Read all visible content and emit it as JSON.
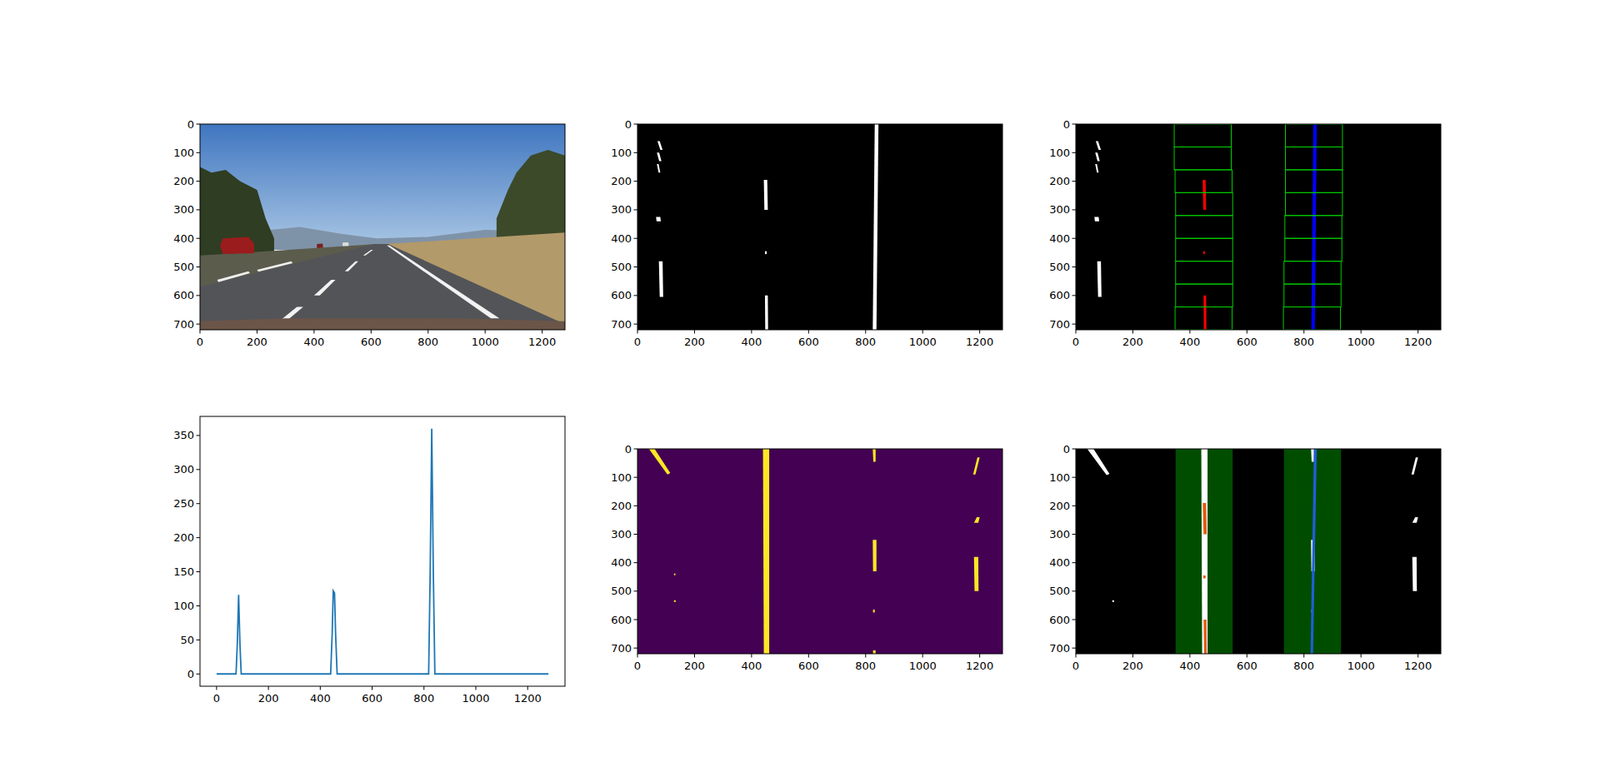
{
  "chart_data": [
    {
      "type": "photo",
      "xlim": [
        0,
        1280
      ],
      "ylim": [
        720,
        0
      ],
      "xticks": [
        0,
        200,
        400,
        600,
        800,
        1000,
        1200
      ],
      "yticks": [
        0,
        100,
        200,
        300,
        400,
        500,
        600,
        700
      ]
    },
    {
      "type": "image",
      "background": "#000000",
      "xlim": [
        0,
        1280
      ],
      "ylim": [
        720,
        0
      ],
      "xticks": [
        0,
        200,
        400,
        600,
        800,
        1000,
        1200
      ],
      "yticks": [
        0,
        100,
        200,
        300,
        400,
        500,
        600,
        700
      ],
      "layers": [
        {
          "type": "polygon",
          "color": "#ffffff",
          "polygons": [
            [
              [
                70,
                60
              ],
              [
                78,
                60
              ],
              [
                88,
                90
              ],
              [
                80,
                90
              ]
            ],
            [
              [
                68,
                100
              ],
              [
                76,
                100
              ],
              [
                84,
                130
              ],
              [
                76,
                130
              ]
            ],
            [
              [
                68,
                140
              ],
              [
                74,
                140
              ],
              [
                80,
                170
              ],
              [
                74,
                170
              ]
            ],
            [
              [
                65,
                325
              ],
              [
                80,
                325
              ],
              [
                82,
                340
              ],
              [
                67,
                340
              ]
            ],
            [
              [
                75,
                480
              ],
              [
                88,
                480
              ],
              [
                90,
                605
              ],
              [
                78,
                605
              ]
            ],
            [
              [
                443,
                195
              ],
              [
                455,
                195
              ],
              [
                457,
                300
              ],
              [
                445,
                300
              ]
            ],
            [
              [
                447,
                445
              ],
              [
                453,
                445
              ],
              [
                453,
                455
              ],
              [
                447,
                455
              ]
            ],
            [
              [
                447,
                600
              ],
              [
                457,
                600
              ],
              [
                458,
                720
              ],
              [
                448,
                720
              ]
            ],
            [
              [
                832,
                0
              ],
              [
                845,
                0
              ],
              [
                838,
                720
              ],
              [
                825,
                720
              ]
            ]
          ]
        }
      ]
    },
    {
      "type": "image",
      "background": "#000000",
      "xlim": [
        0,
        1280
      ],
      "ylim": [
        720,
        0
      ],
      "xticks": [
        0,
        200,
        400,
        600,
        800,
        1000,
        1200
      ],
      "yticks": [
        0,
        100,
        200,
        300,
        400,
        500,
        600,
        700
      ],
      "layers": [
        {
          "type": "polygon",
          "color": "#ffffff",
          "polygons": [
            [
              [
                70,
                60
              ],
              [
                78,
                60
              ],
              [
                88,
                90
              ],
              [
                80,
                90
              ]
            ],
            [
              [
                68,
                100
              ],
              [
                76,
                100
              ],
              [
                84,
                130
              ],
              [
                76,
                130
              ]
            ],
            [
              [
                68,
                140
              ],
              [
                74,
                140
              ],
              [
                80,
                170
              ],
              [
                74,
                170
              ]
            ],
            [
              [
                65,
                325
              ],
              [
                80,
                325
              ],
              [
                82,
                340
              ],
              [
                67,
                340
              ]
            ],
            [
              [
                75,
                480
              ],
              [
                88,
                480
              ],
              [
                90,
                605
              ],
              [
                78,
                605
              ]
            ]
          ]
        },
        {
          "type": "polygon",
          "color": "#ff0000",
          "polygons": [
            [
              [
                445,
                195
              ],
              [
                455,
                195
              ],
              [
                457,
                300
              ],
              [
                447,
                300
              ]
            ],
            [
              [
                447,
                445
              ],
              [
                453,
                445
              ],
              [
                453,
                455
              ],
              [
                447,
                455
              ]
            ],
            [
              [
                448,
                600
              ],
              [
                457,
                600
              ],
              [
                458,
                720
              ],
              [
                449,
                720
              ]
            ]
          ]
        },
        {
          "type": "polygon",
          "color": "#0000ff",
          "polygons": [
            [
              [
                833,
                0
              ],
              [
                845,
                0
              ],
              [
                838,
                720
              ],
              [
                826,
                720
              ]
            ]
          ]
        },
        {
          "type": "outline",
          "color": "#00cc00",
          "boxes": [
            [
              345,
              0,
              545,
              80
            ],
            [
              345,
              80,
              545,
              160
            ],
            [
              348,
              160,
              548,
              240
            ],
            [
              350,
              240,
              550,
              320
            ],
            [
              350,
              320,
              550,
              400
            ],
            [
              350,
              400,
              550,
              480
            ],
            [
              350,
              480,
              550,
              560
            ],
            [
              350,
              560,
              550,
              640
            ],
            [
              348,
              640,
              548,
              720
            ],
            [
              735,
              0,
              935,
              80
            ],
            [
              735,
              80,
              935,
              160
            ],
            [
              735,
              160,
              935,
              240
            ],
            [
              735,
              240,
              935,
              320
            ],
            [
              733,
              320,
              933,
              400
            ],
            [
              733,
              400,
              933,
              480
            ],
            [
              730,
              480,
              930,
              560
            ],
            [
              730,
              560,
              930,
              640
            ],
            [
              728,
              640,
              928,
              720
            ]
          ]
        }
      ]
    },
    {
      "type": "line",
      "color": "#1f77b4",
      "xlim": [
        -64,
        1344
      ],
      "ylim": [
        -18,
        378
      ],
      "xticks": [
        0,
        200,
        400,
        600,
        800,
        1000,
        1200
      ],
      "yticks": [
        0,
        50,
        100,
        150,
        200,
        250,
        300,
        350
      ],
      "x": [
        0,
        75,
        80,
        85,
        90,
        95,
        440,
        446,
        450,
        455,
        459,
        465,
        818,
        824,
        830,
        836,
        842,
        1280
      ],
      "values": [
        0,
        0,
        45,
        116,
        45,
        0,
        0,
        60,
        122,
        119,
        60,
        0,
        0,
        150,
        360,
        150,
        0,
        0
      ]
    },
    {
      "type": "image",
      "background": "#440154",
      "xlim": [
        0,
        1280
      ],
      "ylim": [
        720,
        0
      ],
      "xticks": [
        0,
        200,
        400,
        600,
        800,
        1000,
        1200
      ],
      "yticks": [
        0,
        100,
        200,
        300,
        400,
        500,
        600,
        700
      ],
      "layers": [
        {
          "type": "polygon",
          "color": "#fde725",
          "polygons": [
            [
              [
                40,
                0
              ],
              [
                60,
                0
              ],
              [
                115,
                85
              ],
              [
                105,
                90
              ]
            ],
            [
              [
                440,
                0
              ],
              [
                462,
                0
              ],
              [
                462,
                720
              ],
              [
                443,
                720
              ]
            ],
            [
              [
                825,
                0
              ],
              [
                835,
                0
              ],
              [
                835,
                45
              ],
              [
                827,
                45
              ]
            ],
            [
              [
                825,
                320
              ],
              [
                838,
                320
              ],
              [
                838,
                430
              ],
              [
                826,
                430
              ]
            ],
            [
              [
                826,
                565
              ],
              [
                832,
                565
              ],
              [
                832,
                575
              ],
              [
                826,
                575
              ]
            ],
            [
              [
                826,
                708
              ],
              [
                835,
                708
              ],
              [
                835,
                720
              ],
              [
                826,
                720
              ]
            ],
            [
              [
                1192,
                30
              ],
              [
                1200,
                30
              ],
              [
                1185,
                90
              ],
              [
                1177,
                90
              ]
            ],
            [
              [
                1190,
                240
              ],
              [
                1200,
                240
              ],
              [
                1195,
                260
              ],
              [
                1180,
                260
              ]
            ],
            [
              [
                1180,
                380
              ],
              [
                1195,
                380
              ],
              [
                1196,
                500
              ],
              [
                1182,
                500
              ]
            ],
            [
              [
                128,
                438
              ],
              [
                133,
                438
              ],
              [
                133,
                444
              ],
              [
                128,
                444
              ]
            ],
            [
              [
                128,
                532
              ],
              [
                134,
                532
              ],
              [
                134,
                538
              ],
              [
                128,
                538
              ]
            ]
          ]
        }
      ]
    },
    {
      "type": "image",
      "background": "#000000",
      "xlim": [
        0,
        1280
      ],
      "ylim": [
        720,
        0
      ],
      "xticks": [
        0,
        200,
        400,
        600,
        800,
        1000,
        1200
      ],
      "yticks": [
        0,
        100,
        200,
        300,
        400,
        500,
        600,
        700
      ],
      "layers": [
        {
          "type": "fill",
          "color": "#004d00",
          "boxes": [
            [
              350,
              0,
              550,
              720
            ],
            [
              730,
              0,
              930,
              720
            ]
          ]
        },
        {
          "type": "polygon",
          "color": "#ffffff",
          "polygons": [
            [
              [
                40,
                0
              ],
              [
                62,
                0
              ],
              [
                118,
                88
              ],
              [
                108,
                92
              ]
            ],
            [
              [
                440,
                0
              ],
              [
                462,
                0
              ],
              [
                462,
                720
              ],
              [
                443,
                720
              ]
            ],
            [
              [
                825,
                0
              ],
              [
                835,
                0
              ],
              [
                835,
                45
              ],
              [
                827,
                45
              ]
            ],
            [
              [
                825,
                320
              ],
              [
                838,
                320
              ],
              [
                838,
                430
              ],
              [
                826,
                430
              ]
            ],
            [
              [
                826,
                565
              ],
              [
                832,
                565
              ],
              [
                832,
                575
              ],
              [
                826,
                575
              ]
            ],
            [
              [
                1192,
                30
              ],
              [
                1200,
                30
              ],
              [
                1185,
                90
              ],
              [
                1177,
                90
              ]
            ],
            [
              [
                1190,
                240
              ],
              [
                1200,
                240
              ],
              [
                1195,
                260
              ],
              [
                1180,
                260
              ]
            ],
            [
              [
                1180,
                380
              ],
              [
                1195,
                380
              ],
              [
                1196,
                500
              ],
              [
                1182,
                500
              ]
            ],
            [
              [
                128,
                532
              ],
              [
                134,
                532
              ],
              [
                134,
                538
              ],
              [
                128,
                538
              ]
            ]
          ]
        },
        {
          "type": "polygon",
          "color": "#e8590c",
          "polygons": [
            [
              [
                445,
                190
              ],
              [
                457,
                190
              ],
              [
                459,
                300
              ],
              [
                448,
                300
              ]
            ],
            [
              [
                447,
                445
              ],
              [
                455,
                445
              ],
              [
                455,
                455
              ],
              [
                447,
                455
              ]
            ],
            [
              [
                448,
                600
              ],
              [
                458,
                600
              ],
              [
                459,
                720
              ],
              [
                450,
                720
              ]
            ]
          ]
        },
        {
          "type": "polygon",
          "color": "#1f5fd6",
          "polygons": [
            [
              [
                835,
                0
              ],
              [
                845,
                0
              ],
              [
                832,
                720
              ],
              [
                823,
                720
              ]
            ]
          ]
        }
      ]
    }
  ]
}
